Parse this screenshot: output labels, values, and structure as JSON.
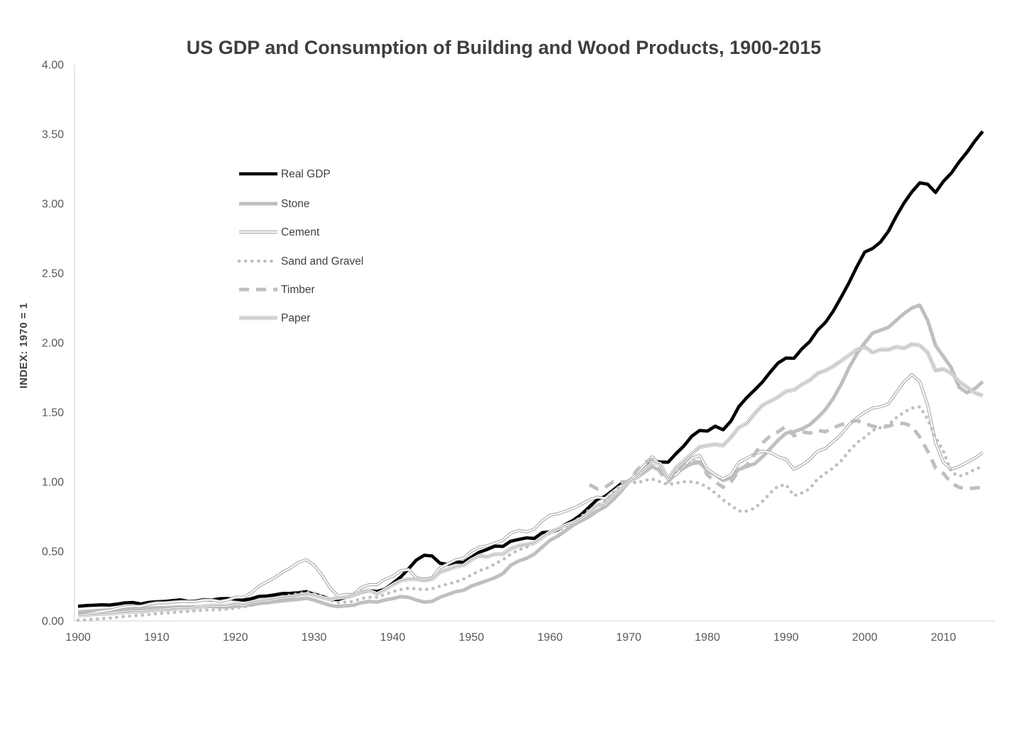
{
  "title": "US GDP and Consumption of Building and Wood Products, 1900-2015",
  "y_axis": {
    "title": "INDEX: 1970 = 1",
    "ticks": [
      "0.00",
      "0.50",
      "1.00",
      "1.50",
      "2.00",
      "2.50",
      "3.00",
      "3.50",
      "4.00"
    ],
    "min": 0,
    "max": 4
  },
  "x_axis": {
    "ticks": [
      "1900",
      "1910",
      "1920",
      "1930",
      "1940",
      "1950",
      "1960",
      "1970",
      "1980",
      "1990",
      "2000",
      "2010"
    ],
    "min": 1900,
    "max": 2015
  },
  "colors": {
    "gdp_black": "#000000",
    "thick_gray": "#bfbfbf",
    "thin_gray": "#a6a6a6",
    "axis_line": "#d9d9d9",
    "tick_text": "#595959",
    "title_text": "#3f3f3f",
    "background": "#ffffff"
  },
  "legend": [
    "Real GDP",
    "Stone",
    "Cement",
    "Sand and Gravel",
    "Timber",
    "Paper"
  ],
  "chart_data": {
    "type": "line",
    "title": "US GDP and Consumption of Building and Wood Products, 1900-2015",
    "xlabel": "",
    "ylabel": "INDEX: 1970 = 1",
    "xlim": [
      1900,
      2015
    ],
    "ylim": [
      0,
      4
    ],
    "grid": false,
    "legend_position": "upper-left-inside",
    "x_start": 1900,
    "x_step": 1,
    "series": [
      {
        "name": "Real GDP",
        "style": "solid-thick-black",
        "values": [
          0.105,
          0.11,
          0.113,
          0.116,
          0.114,
          0.121,
          0.13,
          0.132,
          0.122,
          0.133,
          0.137,
          0.14,
          0.146,
          0.151,
          0.141,
          0.143,
          0.153,
          0.15,
          0.159,
          0.16,
          0.156,
          0.149,
          0.159,
          0.176,
          0.179,
          0.187,
          0.197,
          0.198,
          0.202,
          0.21,
          0.192,
          0.178,
          0.155,
          0.153,
          0.169,
          0.184,
          0.208,
          0.219,
          0.211,
          0.228,
          0.27,
          0.315,
          0.374,
          0.437,
          0.472,
          0.467,
          0.415,
          0.406,
          0.423,
          0.421,
          0.458,
          0.494,
          0.514,
          0.538,
          0.535,
          0.573,
          0.585,
          0.597,
          0.593,
          0.634,
          0.64,
          0.655,
          0.695,
          0.725,
          0.767,
          0.82,
          0.873,
          0.895,
          0.939,
          0.985,
          1.0,
          1.033,
          1.087,
          1.149,
          1.143,
          1.141,
          1.202,
          1.257,
          1.327,
          1.369,
          1.365,
          1.4,
          1.374,
          1.437,
          1.541,
          1.605,
          1.66,
          1.718,
          1.79,
          1.855,
          1.89,
          1.888,
          1.955,
          2.008,
          2.09,
          2.146,
          2.227,
          2.327,
          2.431,
          2.547,
          2.652,
          2.678,
          2.724,
          2.801,
          2.908,
          3.005,
          3.085,
          3.15,
          3.14,
          3.08,
          3.16,
          3.22,
          3.3,
          3.37,
          3.45,
          3.52
        ]
      },
      {
        "name": "Stone",
        "style": "solid-thick-gray",
        "values": [
          0.065,
          0.068,
          0.072,
          0.075,
          0.077,
          0.08,
          0.085,
          0.088,
          0.088,
          0.092,
          0.095,
          0.095,
          0.098,
          0.1,
          0.1,
          0.1,
          0.103,
          0.105,
          0.1,
          0.1,
          0.105,
          0.108,
          0.115,
          0.125,
          0.13,
          0.138,
          0.145,
          0.15,
          0.155,
          0.163,
          0.15,
          0.13,
          0.112,
          0.103,
          0.108,
          0.112,
          0.13,
          0.14,
          0.135,
          0.15,
          0.16,
          0.175,
          0.17,
          0.15,
          0.135,
          0.14,
          0.17,
          0.19,
          0.21,
          0.22,
          0.25,
          0.27,
          0.29,
          0.31,
          0.34,
          0.4,
          0.43,
          0.45,
          0.48,
          0.53,
          0.58,
          0.61,
          0.65,
          0.69,
          0.72,
          0.75,
          0.79,
          0.82,
          0.87,
          0.93,
          1.0,
          1.03,
          1.07,
          1.11,
          1.08,
          1.03,
          1.06,
          1.1,
          1.13,
          1.14,
          1.08,
          1.05,
          1.01,
          1.03,
          1.09,
          1.11,
          1.13,
          1.18,
          1.24,
          1.3,
          1.35,
          1.36,
          1.38,
          1.41,
          1.46,
          1.52,
          1.6,
          1.7,
          1.82,
          1.92,
          2.0,
          2.07,
          2.09,
          2.11,
          2.16,
          2.21,
          2.25,
          2.27,
          2.16,
          1.98,
          1.9,
          1.82,
          1.68,
          1.64,
          1.67,
          1.72
        ]
      },
      {
        "name": "Cement",
        "style": "double-thin-gray",
        "values": [
          0.045,
          0.05,
          0.06,
          0.07,
          0.075,
          0.09,
          0.1,
          0.105,
          0.105,
          0.12,
          0.13,
          0.13,
          0.135,
          0.14,
          0.14,
          0.14,
          0.15,
          0.15,
          0.14,
          0.15,
          0.17,
          0.17,
          0.2,
          0.25,
          0.28,
          0.31,
          0.35,
          0.38,
          0.42,
          0.44,
          0.4,
          0.33,
          0.24,
          0.18,
          0.19,
          0.19,
          0.24,
          0.26,
          0.26,
          0.3,
          0.32,
          0.36,
          0.37,
          0.31,
          0.3,
          0.31,
          0.38,
          0.41,
          0.44,
          0.45,
          0.5,
          0.53,
          0.54,
          0.56,
          0.58,
          0.63,
          0.65,
          0.64,
          0.66,
          0.72,
          0.76,
          0.77,
          0.79,
          0.81,
          0.84,
          0.87,
          0.89,
          0.88,
          0.93,
          0.97,
          1.0,
          1.06,
          1.12,
          1.18,
          1.12,
          1.02,
          1.05,
          1.11,
          1.17,
          1.19,
          1.09,
          1.05,
          1.02,
          1.05,
          1.14,
          1.17,
          1.2,
          1.22,
          1.21,
          1.18,
          1.16,
          1.09,
          1.12,
          1.16,
          1.22,
          1.24,
          1.29,
          1.34,
          1.41,
          1.46,
          1.5,
          1.53,
          1.54,
          1.56,
          1.64,
          1.72,
          1.77,
          1.72,
          1.55,
          1.28,
          1.14,
          1.09,
          1.11,
          1.14,
          1.17,
          1.21
        ]
      },
      {
        "name": "Sand and Gravel",
        "style": "dotted-gray",
        "values": [
          0.005,
          0.008,
          0.012,
          0.016,
          0.02,
          0.026,
          0.032,
          0.036,
          0.04,
          0.046,
          0.052,
          0.056,
          0.06,
          0.065,
          0.068,
          0.072,
          0.076,
          0.08,
          0.08,
          0.085,
          0.092,
          0.1,
          0.11,
          0.13,
          0.145,
          0.16,
          0.175,
          0.185,
          0.195,
          0.205,
          0.2,
          0.18,
          0.15,
          0.13,
          0.135,
          0.14,
          0.16,
          0.17,
          0.17,
          0.19,
          0.21,
          0.225,
          0.235,
          0.23,
          0.225,
          0.23,
          0.25,
          0.265,
          0.28,
          0.3,
          0.33,
          0.36,
          0.38,
          0.41,
          0.44,
          0.48,
          0.51,
          0.53,
          0.56,
          0.6,
          0.63,
          0.65,
          0.68,
          0.71,
          0.75,
          0.8,
          0.83,
          0.86,
          0.92,
          0.98,
          1.01,
          0.99,
          1.01,
          1.02,
          1.0,
          0.98,
          0.99,
          1.0,
          1.0,
          0.99,
          0.96,
          0.92,
          0.87,
          0.83,
          0.79,
          0.79,
          0.81,
          0.86,
          0.92,
          0.97,
          0.98,
          0.9,
          0.92,
          0.95,
          1.02,
          1.06,
          1.1,
          1.15,
          1.22,
          1.28,
          1.32,
          1.37,
          1.39,
          1.41,
          1.46,
          1.5,
          1.53,
          1.54,
          1.45,
          1.32,
          1.22,
          1.07,
          1.04,
          1.06,
          1.09,
          1.11
        ]
      },
      {
        "name": "Timber",
        "style": "dashed-thick-gray",
        "x_start": 1965,
        "values": [
          0.98,
          0.95,
          0.96,
          1.0,
          1.0,
          1.0,
          1.08,
          1.14,
          1.16,
          1.07,
          1.0,
          1.06,
          1.13,
          1.15,
          1.14,
          1.05,
          1.0,
          0.96,
          1.0,
          1.08,
          1.12,
          1.2,
          1.28,
          1.33,
          1.36,
          1.4,
          1.33,
          1.36,
          1.35,
          1.37,
          1.36,
          1.39,
          1.41,
          1.43,
          1.44,
          1.42,
          1.4,
          1.39,
          1.4,
          1.42,
          1.42,
          1.4,
          1.32,
          1.22,
          1.1,
          1.06,
          0.99,
          0.96,
          0.95,
          0.955,
          0.96
        ]
      },
      {
        "name": "Paper",
        "style": "triple-thin-gray",
        "values": [
          0.04,
          0.043,
          0.047,
          0.05,
          0.053,
          0.058,
          0.063,
          0.066,
          0.066,
          0.073,
          0.078,
          0.08,
          0.085,
          0.09,
          0.09,
          0.095,
          0.105,
          0.11,
          0.11,
          0.11,
          0.125,
          0.115,
          0.135,
          0.145,
          0.15,
          0.16,
          0.17,
          0.175,
          0.185,
          0.195,
          0.185,
          0.17,
          0.155,
          0.165,
          0.17,
          0.185,
          0.21,
          0.22,
          0.195,
          0.225,
          0.26,
          0.29,
          0.3,
          0.3,
          0.29,
          0.3,
          0.35,
          0.37,
          0.39,
          0.4,
          0.44,
          0.47,
          0.46,
          0.48,
          0.48,
          0.52,
          0.54,
          0.55,
          0.56,
          0.6,
          0.64,
          0.66,
          0.69,
          0.71,
          0.74,
          0.78,
          0.83,
          0.84,
          0.9,
          0.95,
          1.0,
          1.03,
          1.09,
          1.14,
          1.13,
          1.02,
          1.1,
          1.15,
          1.2,
          1.25,
          1.26,
          1.27,
          1.26,
          1.32,
          1.39,
          1.42,
          1.49,
          1.55,
          1.58,
          1.61,
          1.65,
          1.66,
          1.7,
          1.73,
          1.78,
          1.8,
          1.83,
          1.87,
          1.91,
          1.95,
          1.97,
          1.93,
          1.95,
          1.95,
          1.97,
          1.96,
          1.99,
          1.98,
          1.93,
          1.8,
          1.81,
          1.78,
          1.72,
          1.68,
          1.64,
          1.62
        ]
      }
    ]
  }
}
